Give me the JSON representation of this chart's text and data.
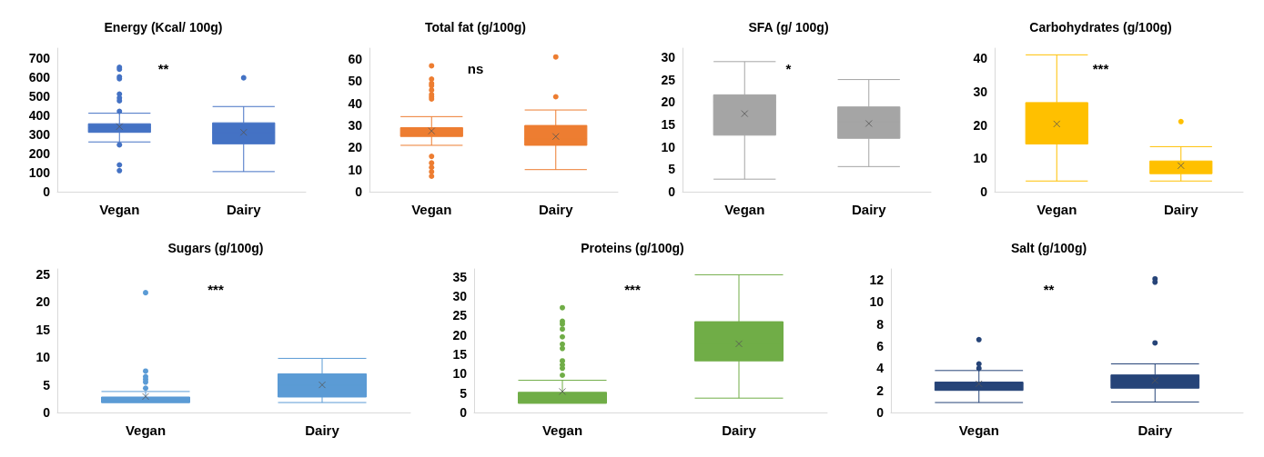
{
  "chart_data": [
    {
      "type": "box",
      "title": "Energy (Kcal/ 100g)",
      "categories": [
        "Vegan",
        "Dairy"
      ],
      "ylim": [
        0,
        750
      ],
      "yticks": [
        0,
        100,
        200,
        300,
        400,
        500,
        600,
        700
      ],
      "annotations": [
        "**"
      ],
      "series": [
        {
          "color": "#4472c4",
          "boxes": [
            {
              "low": 260,
              "q1": 310,
              "median": 335,
              "q3": 355,
              "high": 410,
              "mean": 340,
              "outliers": [
                650,
                640,
                600,
                590,
                510,
                490,
                475,
                420,
                245,
                140,
                110
              ]
            },
            {
              "low": 105,
              "q1": 250,
              "median": 310,
              "q3": 360,
              "high": 445,
              "mean": 310,
              "outliers": [
                595
              ]
            }
          ]
        }
      ]
    },
    {
      "type": "box",
      "title": "Total fat (g/100g)",
      "categories": [
        "Vegan",
        "Dairy"
      ],
      "ylim": [
        0,
        65
      ],
      "yticks": [
        0,
        10,
        20,
        30,
        40,
        50,
        60
      ],
      "annotations": [
        "ns"
      ],
      "series": [
        {
          "color": "#ed7d31",
          "boxes": [
            {
              "low": 21,
              "q1": 25,
              "median": 26,
              "q3": 29,
              "high": 34,
              "mean": 27.5,
              "outliers": [
                57,
                51,
                49,
                48,
                46,
                44,
                43,
                42,
                16,
                13,
                11,
                9,
                7
              ]
            },
            {
              "low": 10,
              "q1": 21,
              "median": 24,
              "q3": 30,
              "high": 37,
              "mean": 25,
              "outliers": [
                61,
                43
              ]
            }
          ]
        }
      ]
    },
    {
      "type": "box",
      "title": "SFA (g/ 100g)",
      "categories": [
        "Vegan",
        "Dairy"
      ],
      "ylim": [
        0,
        32
      ],
      "yticks": [
        0,
        5,
        10,
        15,
        20,
        25,
        30
      ],
      "annotations": [
        "*"
      ],
      "series": [
        {
          "color": "#a5a5a5",
          "boxes": [
            {
              "low": 2.8,
              "q1": 12.6,
              "median": 20,
              "q3": 21.6,
              "high": 29,
              "mean": 17.4
            },
            {
              "low": 5.6,
              "q1": 11.9,
              "median": 15.6,
              "q3": 18.9,
              "high": 25,
              "mean": 15.2
            }
          ]
        }
      ]
    },
    {
      "type": "box",
      "title": "Carbohydrates (g/100g)",
      "categories": [
        "Vegan",
        "Dairy"
      ],
      "ylim": [
        0,
        43
      ],
      "yticks": [
        0,
        10,
        20,
        30,
        40
      ],
      "annotations": [
        "***"
      ],
      "series": [
        {
          "color": "#ffc000",
          "boxes": [
            {
              "low": 3.2,
              "q1": 14.3,
              "median": 23.2,
              "q3": 26.7,
              "high": 41,
              "mean": 20.3
            },
            {
              "low": 3.2,
              "q1": 5.4,
              "median": 7.3,
              "q3": 9.2,
              "high": 13.5,
              "mean": 7.8,
              "outliers": [
                21
              ]
            }
          ]
        }
      ]
    },
    {
      "type": "box",
      "title": "Sugars (g/100g)",
      "categories": [
        "Vegan",
        "Dairy"
      ],
      "ylim": [
        0,
        26
      ],
      "yticks": [
        0,
        5,
        10,
        15,
        20,
        25
      ],
      "annotations": [
        "***"
      ],
      "series": [
        {
          "color": "#5b9bd5",
          "boxes": [
            {
              "low": 1.8,
              "q1": 1.8,
              "median": 2.1,
              "q3": 2.8,
              "high": 3.8,
              "mean": 2.9,
              "outliers": [
                21.7,
                7.5,
                6.5,
                6,
                5.5,
                4.4
              ]
            },
            {
              "low": 1.8,
              "q1": 2.8,
              "median": 4.9,
              "q3": 7,
              "high": 9.8,
              "mean": 5
            }
          ]
        }
      ]
    },
    {
      "type": "box",
      "title": "Proteins (g/100g)",
      "categories": [
        "Vegan",
        "Dairy"
      ],
      "ylim": [
        0,
        37
      ],
      "yticks": [
        0,
        5,
        10,
        15,
        20,
        25,
        30,
        35
      ],
      "annotations": [
        "***"
      ],
      "series": [
        {
          "color": "#70ad47",
          "boxes": [
            {
              "low": 2.4,
              "q1": 2.4,
              "median": 3.2,
              "q3": 5.2,
              "high": 8.3,
              "mean": 5.4,
              "outliers": [
                27,
                23.5,
                22.8,
                21.5,
                19.5,
                17.6,
                16.5,
                13.3,
                12.3,
                11.4,
                9.6
              ]
            },
            {
              "low": 3.7,
              "q1": 13.3,
              "median": 17.7,
              "q3": 23.4,
              "high": 35.5,
              "mean": 17.7
            }
          ]
        }
      ]
    },
    {
      "type": "box",
      "title": "Salt (g/100g)",
      "categories": [
        "Vegan",
        "Dairy"
      ],
      "ylim": [
        0,
        13
      ],
      "yticks": [
        0,
        2,
        4,
        6,
        8,
        10,
        12
      ],
      "annotations": [
        "**"
      ],
      "series": [
        {
          "color": "#264478",
          "boxes": [
            {
              "low": 0.9,
              "q1": 2,
              "median": 2.6,
              "q3": 2.75,
              "high": 3.8,
              "mean": 2.6,
              "outliers": [
                6.6,
                4.4,
                4
              ]
            },
            {
              "low": 0.95,
              "q1": 2.2,
              "median": 2.9,
              "q3": 3.4,
              "high": 4.4,
              "mean": 2.9,
              "outliers": [
                12.1,
                11.8,
                6.3
              ]
            }
          ]
        }
      ]
    }
  ]
}
